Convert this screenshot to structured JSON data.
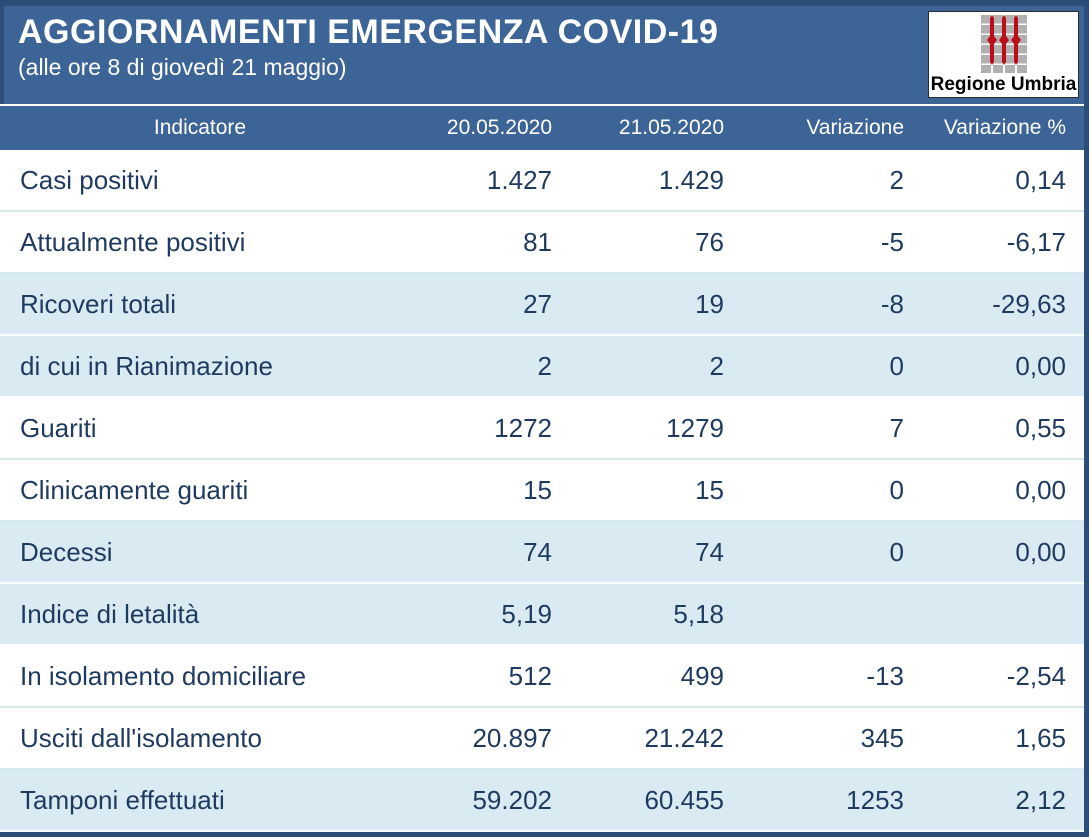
{
  "header": {
    "title": "AGGIORNAMENTI EMERGENZA COVID-19",
    "subtitle": "(alle ore 8 di giovedì 21 maggio)",
    "logo_text": "Regione Umbria"
  },
  "colors": {
    "title_bar_blue": "#3C6496",
    "frame_border": "#2C4D77",
    "shaded_row": "#DAEAF2",
    "table_text": "#1F3A5F",
    "logo_red": "#C00D1A",
    "logo_gray": "#B0B0B0"
  },
  "chart_data": {
    "type": "table",
    "title": "AGGIORNAMENTI EMERGENZA COVID-19",
    "subtitle": "(alle ore 8 di giovedì 21 maggio)",
    "columns": [
      "Indicatore",
      "20.05.2020",
      "21.05.2020",
      "Variazione",
      "Variazione %"
    ],
    "rows": [
      [
        "Casi positivi",
        "1.427",
        "1.429",
        "2",
        "0,14"
      ],
      [
        "Attualmente positivi",
        "81",
        "76",
        "-5",
        "-6,17"
      ],
      [
        "Ricoveri totali",
        "27",
        "19",
        "-8",
        "-29,63"
      ],
      [
        "di cui in Rianimazione",
        "2",
        "2",
        "0",
        "0,00"
      ],
      [
        "Guariti",
        "1272",
        "1279",
        "7",
        "0,55"
      ],
      [
        "Clinicamente guariti",
        "15",
        "15",
        "0",
        "0,00"
      ],
      [
        "Decessi",
        "74",
        "74",
        "0",
        "0,00"
      ],
      [
        "Indice di letalità",
        "5,19",
        "5,18",
        "",
        ""
      ],
      [
        "In isolamento domiciliare",
        "512",
        "499",
        "-13",
        "-2,54"
      ],
      [
        "Usciti dall'isolamento",
        "20.897",
        "21.242",
        "345",
        "1,65"
      ],
      [
        "Tamponi effettuati",
        "59.202",
        "60.455",
        "1253",
        "2,12"
      ]
    ]
  }
}
